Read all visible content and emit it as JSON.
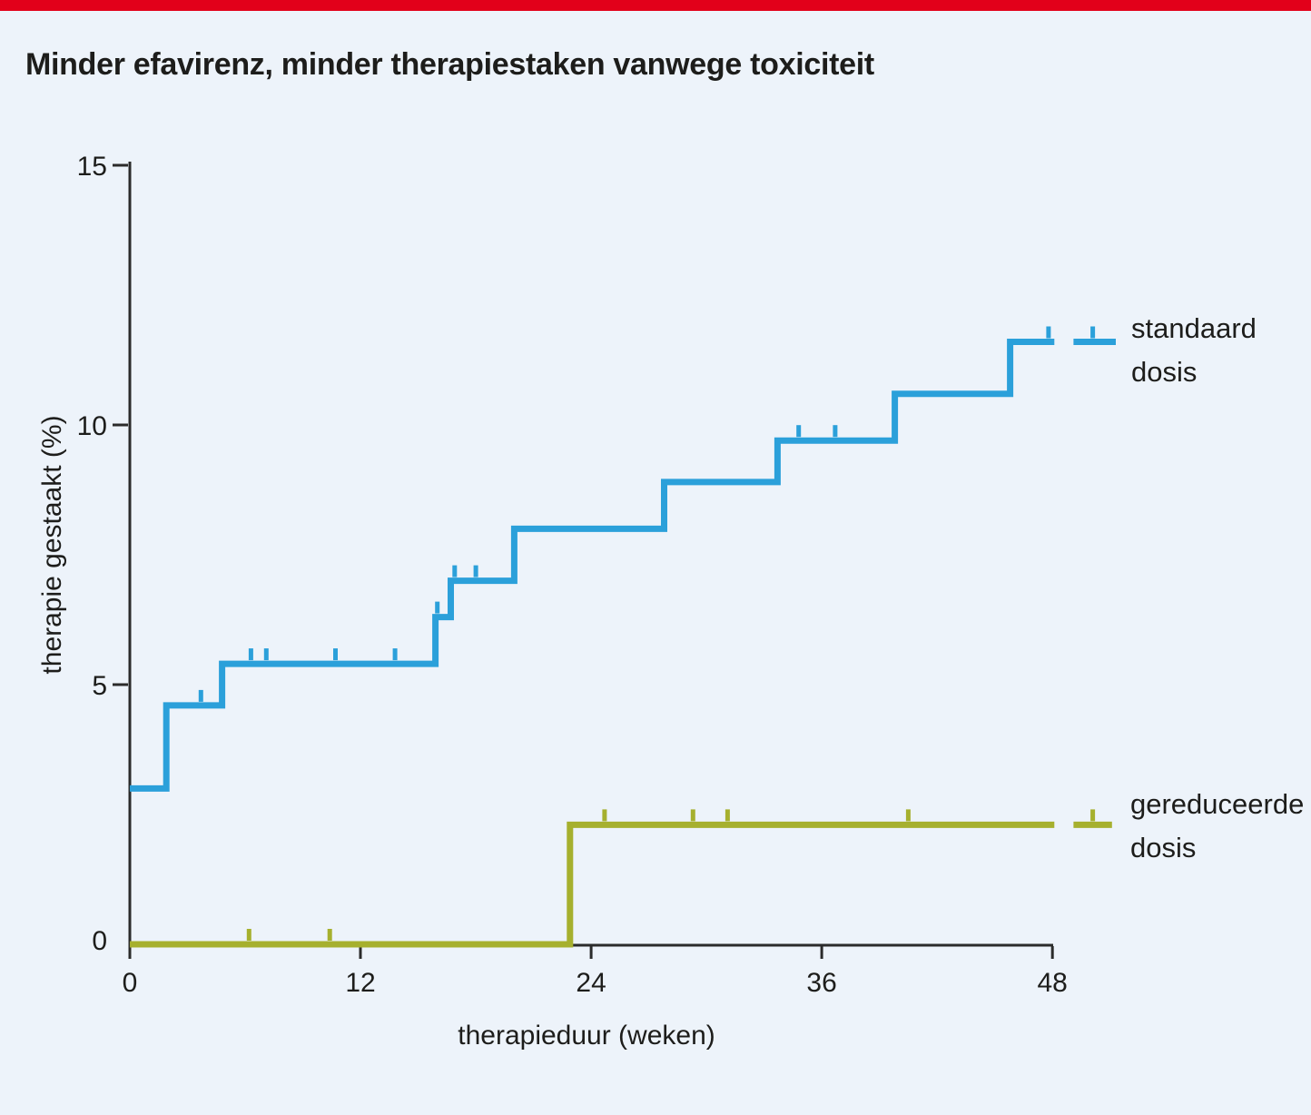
{
  "page": {
    "background": "#edf3fa",
    "accent_bar_color": "#e2001a",
    "axis_color": "#2b2b2b",
    "text_color": "#1d1d1b"
  },
  "chart_data": {
    "type": "line",
    "subtype": "kaplan-meier-step",
    "title": "Minder efavirenz, minder therapiestaken vanwege toxiciteit",
    "xlabel": "therapieduur (weken)",
    "ylabel": "therapie gestaakt (%)",
    "xlim": [
      0,
      51.5
    ],
    "ylim": [
      0,
      15
    ],
    "x_ticks": [
      0,
      12,
      24,
      36,
      48
    ],
    "y_ticks": [
      0,
      5,
      10,
      15
    ],
    "grid": false,
    "legend_position": "right-of-line-ends",
    "series": [
      {
        "name": "standaard dosis",
        "label_lines": [
          "standaard",
          "dosis"
        ],
        "color": "#2ba0da",
        "steps": [
          [
            0,
            3.0
          ],
          [
            1.9,
            4.6
          ],
          [
            4.8,
            5.4
          ],
          [
            15.9,
            6.3
          ],
          [
            16.7,
            7.0
          ],
          [
            20.0,
            8.0
          ],
          [
            27.8,
            8.9
          ],
          [
            33.7,
            9.7
          ],
          [
            39.8,
            10.6
          ],
          [
            45.8,
            11.6
          ]
        ],
        "segment_end_week": 48.1,
        "resume_segment": {
          "from": 49.1,
          "to": 51.3,
          "value": 11.6
        },
        "censor_ticks": [
          [
            3.7,
            4.6
          ],
          [
            6.3,
            5.4
          ],
          [
            7.1,
            5.4
          ],
          [
            10.7,
            5.4
          ],
          [
            13.8,
            5.4
          ],
          [
            16.0,
            6.3
          ],
          [
            16.9,
            7.0
          ],
          [
            18.0,
            7.0
          ],
          [
            34.8,
            9.7
          ],
          [
            36.7,
            9.7
          ],
          [
            47.8,
            11.6
          ],
          [
            50.1,
            11.6
          ]
        ]
      },
      {
        "name": "gereduceerde dosis",
        "label_lines": [
          "gereduceerde",
          "dosis"
        ],
        "color": "#a6b02e",
        "steps": [
          [
            0,
            0.0
          ],
          [
            22.9,
            2.3
          ]
        ],
        "segment_end_week": 48.1,
        "resume_segment": {
          "from": 49.1,
          "to": 51.1,
          "value": 2.3
        },
        "censor_ticks": [
          [
            6.2,
            0.0
          ],
          [
            10.4,
            0.0
          ],
          [
            24.7,
            2.3
          ],
          [
            29.3,
            2.3
          ],
          [
            31.1,
            2.3
          ],
          [
            40.5,
            2.3
          ],
          [
            50.1,
            2.3
          ]
        ]
      }
    ]
  }
}
